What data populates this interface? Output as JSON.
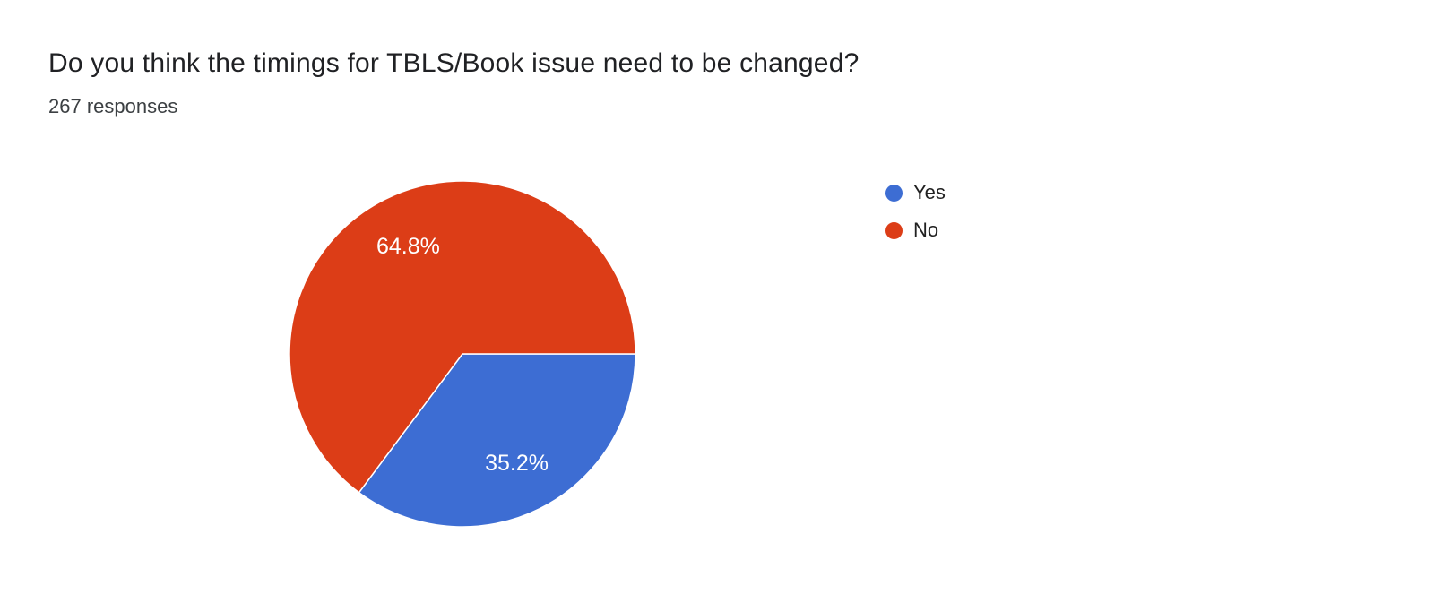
{
  "header": {
    "title": "Do you think the timings for TBLS/Book issue need to be changed?",
    "responses": "267 responses"
  },
  "chart_data": {
    "type": "pie",
    "title": "Do you think the timings for TBLS/Book issue need to be changed?",
    "subtitle": "267 responses",
    "total_responses": 267,
    "start_angle_deg": 0,
    "direction": "clockwise",
    "legend_position": "right",
    "label_color": "#ffffff",
    "slices": [
      {
        "label": "Yes",
        "percent": 35.2,
        "data_label": "35.2%",
        "color": "#3d6dd3"
      },
      {
        "label": "No",
        "percent": 64.8,
        "data_label": "64.8%",
        "color": "#dc3d17"
      }
    ]
  }
}
